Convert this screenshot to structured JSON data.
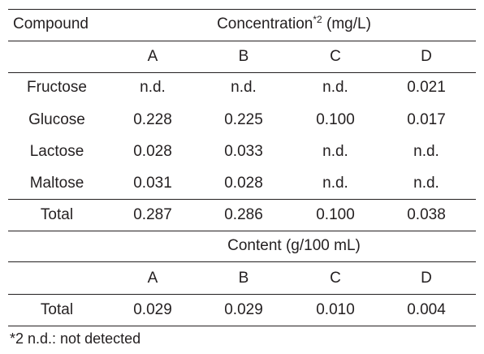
{
  "table": {
    "compound_header": "Compound",
    "concentration_header": "Concentration",
    "concentration_note_marker": "*2",
    "concentration_unit": " (mg/L)",
    "sample_labels": [
      "A",
      "B",
      "C",
      "D"
    ],
    "rows": [
      {
        "compound": "Fructose",
        "values": [
          "n.d.",
          "n.d.",
          "n.d.",
          "0.021"
        ]
      },
      {
        "compound": "Glucose",
        "values": [
          "0.228",
          "0.225",
          "0.100",
          "0.017"
        ]
      },
      {
        "compound": "Lactose",
        "values": [
          "0.028",
          "0.033",
          "n.d.",
          "n.d."
        ]
      },
      {
        "compound": "Maltose",
        "values": [
          "0.031",
          "0.028",
          "n.d.",
          "n.d."
        ]
      }
    ],
    "concentration_total": {
      "label": "Total",
      "values": [
        "0.287",
        "0.286",
        "0.100",
        "0.038"
      ]
    },
    "content_header": "Content (g/100 mL)",
    "content_sample_labels": [
      "A",
      "B",
      "C",
      "D"
    ],
    "content_total": {
      "label": "Total",
      "values": [
        "0.029",
        "0.029",
        "0.010",
        "0.004"
      ]
    }
  },
  "footnote": "*2 n.d.: not detected"
}
